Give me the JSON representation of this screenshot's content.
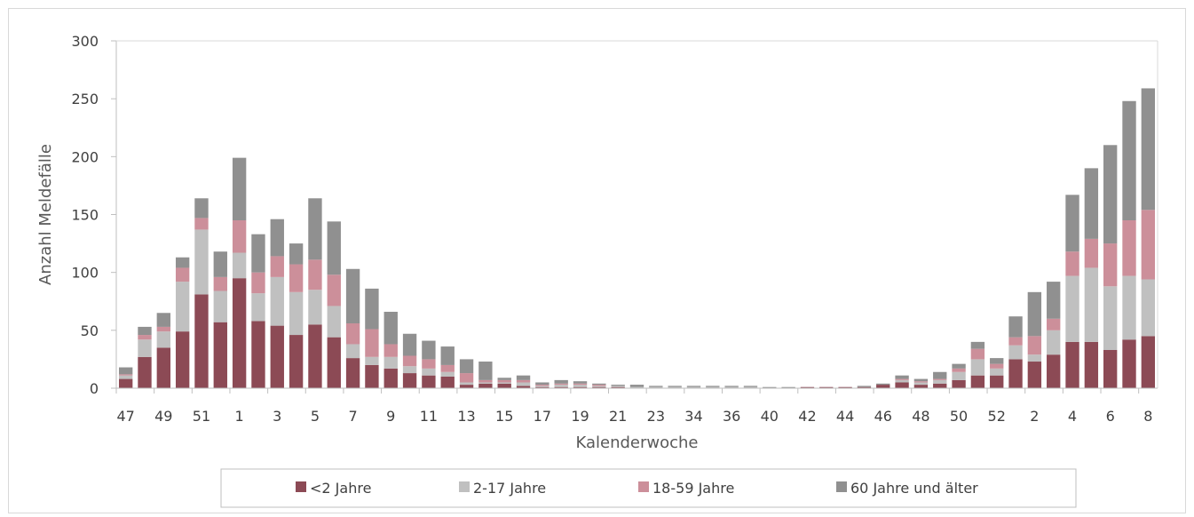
{
  "chart_data": {
    "type": "bar",
    "stacked": true,
    "xlabel": "Kalenderwoche",
    "ylabel": "Anzahl Meldefälle",
    "ylim": [
      0,
      300
    ],
    "yticks": [
      0,
      50,
      100,
      150,
      200,
      250,
      300
    ],
    "grid": false,
    "legend_position": "bottom",
    "categories": [
      "47",
      "48",
      "49",
      "50",
      "51",
      "52",
      "1",
      "2",
      "3",
      "4",
      "5",
      "6",
      "7",
      "8",
      "9",
      "10",
      "11",
      "12",
      "13",
      "14",
      "15",
      "16",
      "17",
      "18",
      "19",
      "20",
      "21",
      "22",
      "23",
      "24",
      "34",
      "35",
      "36",
      "37",
      "40",
      "41",
      "42",
      "43",
      "44",
      "45",
      "46",
      "47",
      "48",
      "49",
      "50",
      "51",
      "52",
      "1",
      "2",
      "3",
      "4",
      "5",
      "6",
      "7",
      "8"
    ],
    "xtick_labels": [
      "47",
      "49",
      "51",
      "1",
      "3",
      "5",
      "7",
      "9",
      "11",
      "13",
      "15",
      "17",
      "19",
      "21",
      "23",
      "34",
      "36",
      "40",
      "42",
      "44",
      "46",
      "48",
      "50",
      "52",
      "2",
      "4",
      "6",
      "8"
    ],
    "series": [
      {
        "name": "<2 Jahre",
        "color": "#8c4a55",
        "values": [
          8,
          27,
          35,
          49,
          81,
          57,
          95,
          58,
          54,
          46,
          55,
          44,
          26,
          20,
          17,
          13,
          11,
          10,
          3,
          4,
          4,
          2,
          1,
          1,
          1,
          1,
          1,
          0,
          0,
          0,
          0,
          0,
          0,
          0,
          0,
          0,
          1,
          1,
          1,
          1,
          3,
          5,
          3,
          4,
          7,
          11,
          11,
          25,
          23,
          29,
          40,
          40,
          33,
          42,
          45
        ]
      },
      {
        "name": "2-17 Jahre",
        "color": "#c0c0c0",
        "values": [
          3,
          15,
          14,
          43,
          56,
          27,
          22,
          24,
          42,
          37,
          30,
          27,
          12,
          7,
          10,
          6,
          6,
          4,
          2,
          1,
          1,
          3,
          1,
          2,
          2,
          1,
          1,
          1,
          1,
          1,
          1,
          1,
          1,
          1,
          0,
          0,
          0,
          0,
          0,
          0,
          0,
          2,
          2,
          3,
          7,
          14,
          6,
          12,
          6,
          21,
          57,
          64,
          55,
          55,
          49
        ]
      },
      {
        "name": "18-59 Jahre",
        "color": "#cc8f9a",
        "values": [
          1,
          4,
          4,
          12,
          10,
          12,
          28,
          18,
          18,
          24,
          26,
          27,
          18,
          24,
          11,
          9,
          8,
          6,
          8,
          2,
          2,
          2,
          1,
          1,
          1,
          1,
          0,
          0,
          0,
          0,
          0,
          0,
          0,
          0,
          0,
          0,
          0,
          0,
          0,
          0,
          0,
          1,
          1,
          1,
          3,
          9,
          4,
          7,
          16,
          10,
          21,
          25,
          37,
          48,
          60
        ]
      },
      {
        "name": "60 Jahre und älter",
        "color": "#909090",
        "values": [
          6,
          7,
          12,
          9,
          17,
          22,
          54,
          33,
          32,
          18,
          53,
          46,
          47,
          35,
          28,
          19,
          16,
          16,
          12,
          16,
          2,
          4,
          2,
          3,
          2,
          1,
          1,
          2,
          1,
          1,
          1,
          1,
          1,
          1,
          1,
          1,
          0,
          0,
          0,
          1,
          1,
          3,
          2,
          6,
          4,
          6,
          5,
          18,
          38,
          32,
          49,
          61,
          85,
          103,
          105
        ]
      }
    ]
  }
}
